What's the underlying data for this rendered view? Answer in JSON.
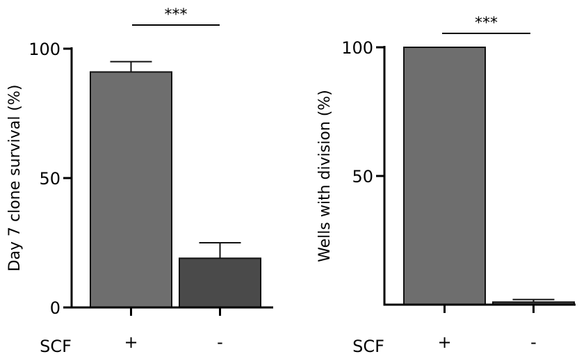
{
  "chart_data": [
    {
      "type": "bar",
      "ylabel": "Day 7 clone survival (%)",
      "group_label": "SCF",
      "categories": [
        "+",
        "-"
      ],
      "values": [
        91,
        19
      ],
      "errors": [
        4,
        6
      ],
      "bar_colors": [
        "#6e6e6e",
        "#4a4a4a"
      ],
      "ylim": [
        0,
        100
      ],
      "yticks": [
        0,
        50,
        100
      ],
      "ytick_labels": [
        "0",
        "50",
        "100"
      ],
      "significance": "***"
    },
    {
      "type": "bar",
      "ylabel": "Wells with division (%)",
      "group_label": "SCF",
      "categories": [
        "+",
        "-"
      ],
      "values": [
        100,
        1
      ],
      "errors": [
        0,
        1
      ],
      "bar_colors": [
        "#6e6e6e",
        "#4a4a4a"
      ],
      "ylim": [
        0,
        100
      ],
      "yticks": [
        50,
        100
      ],
      "ytick_labels": [
        "50",
        "100"
      ],
      "significance": "***"
    }
  ]
}
